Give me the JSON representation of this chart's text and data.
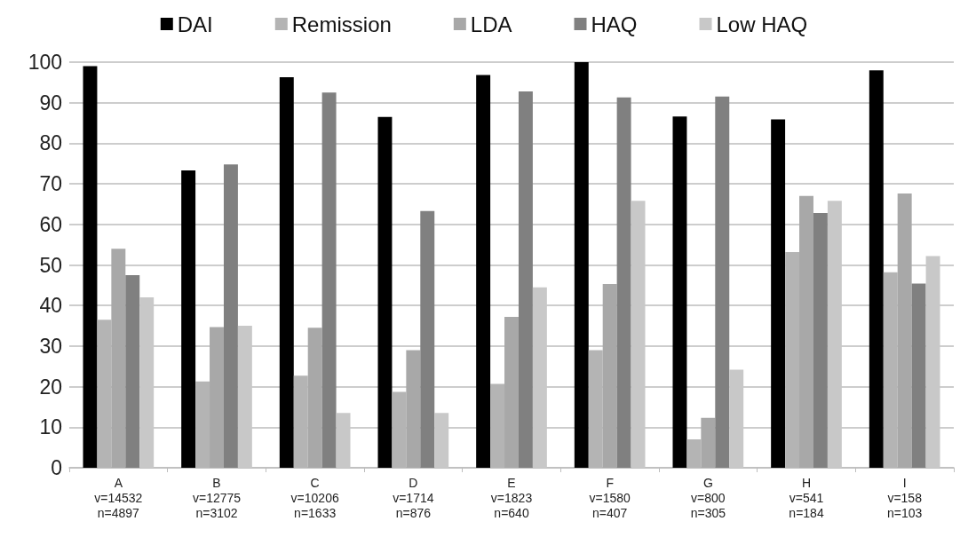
{
  "chart_data": {
    "type": "bar",
    "categories": [
      "A\nv=14532\nn=4897",
      "B\nv=12775\nn=3102",
      "C\nv=10206\nn=1633",
      "D\nv=1714\nn=876",
      "E\nv=1823\nn=640",
      "F\nv=1580\nn=407",
      "G\nv=800\nn=305",
      "H\nv=541\nn=184",
      "I\nv=158\nn=103"
    ],
    "series": [
      {
        "name": "DAI",
        "color": "#000000",
        "values": [
          99,
          73.3,
          96.3,
          86.5,
          96.8,
          100,
          86.6,
          85.9,
          98
        ]
      },
      {
        "name": "Remission",
        "color": "#b4b4b4",
        "values": [
          36.5,
          21.3,
          22.7,
          18.7,
          20.7,
          29,
          7,
          53.2,
          48.2
        ]
      },
      {
        "name": "LDA",
        "color": "#a8a8a8",
        "values": [
          54,
          34.7,
          34.5,
          29,
          37.2,
          45.3,
          12.3,
          67,
          67.6
        ]
      },
      {
        "name": "HAQ",
        "color": "#808080",
        "values": [
          47.5,
          74.8,
          92.5,
          63.3,
          92.8,
          91.3,
          91.5,
          62.8,
          45.4
        ]
      },
      {
        "name": "Low HAQ",
        "color": "#c8c8c8",
        "values": [
          42,
          35,
          13.5,
          13.5,
          44.5,
          65.8,
          24.2,
          65.8,
          52.2
        ]
      }
    ],
    "ylim": [
      0,
      100
    ],
    "yticks": [
      0,
      10,
      20,
      30,
      40,
      50,
      60,
      70,
      80,
      90,
      100
    ],
    "grid": "y",
    "legend": "top"
  }
}
